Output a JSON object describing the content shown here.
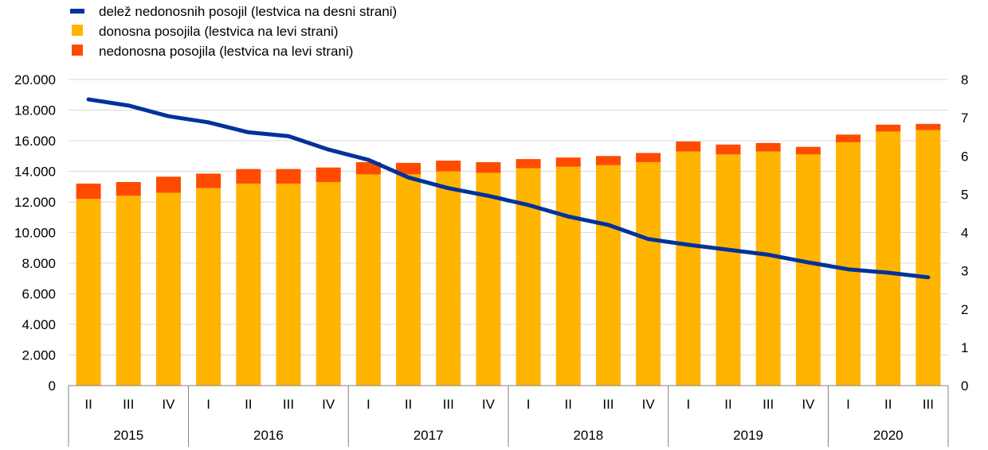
{
  "chart_data": {
    "type": "bar",
    "stacked": true,
    "colors": {
      "performing": "#FFB400",
      "nonperforming": "#FF4B00",
      "ratio": "#003299",
      "axis": "#808080"
    },
    "legend": [
      {
        "key": "ratio",
        "label": "delež nedonosnih posojil (lestvica na desni strani)",
        "marker": "line"
      },
      {
        "key": "performing",
        "label": "donosna posojila (lestvica na levi strani)",
        "marker": "square"
      },
      {
        "key": "nonperforming",
        "label": "nedonosna posojila (lestvica na levi strani)",
        "marker": "square"
      }
    ],
    "legend_position": "top-left",
    "categories": [
      "II",
      "III",
      "IV",
      "I",
      "II",
      "III",
      "IV",
      "I",
      "II",
      "III",
      "IV",
      "I",
      "II",
      "III",
      "IV",
      "I",
      "II",
      "III",
      "IV",
      "I",
      "II",
      "III"
    ],
    "years": [
      {
        "label": "2015",
        "count": 3
      },
      {
        "label": "2016",
        "count": 4
      },
      {
        "label": "2017",
        "count": 4
      },
      {
        "label": "2018",
        "count": 4
      },
      {
        "label": "2019",
        "count": 4
      },
      {
        "label": "2020",
        "count": 3
      }
    ],
    "series": [
      {
        "key": "performing",
        "name": "donosna posojila (lestvica na levi strani)",
        "axis": "left",
        "values": [
          12200,
          12400,
          12600,
          12900,
          13200,
          13200,
          13300,
          13800,
          13800,
          14000,
          13900,
          14200,
          14300,
          14400,
          14600,
          15300,
          15100,
          15300,
          15100,
          15900,
          16600,
          16700
        ]
      },
      {
        "key": "nonperforming",
        "name": "nedonosna posojila (lestvica na levi strani)",
        "axis": "left",
        "values": [
          1000,
          900,
          1050,
          950,
          950,
          950,
          950,
          800,
          750,
          700,
          700,
          600,
          600,
          600,
          600,
          650,
          650,
          550,
          500,
          500,
          450,
          400
        ]
      },
      {
        "key": "ratio",
        "name": "delež nedonosnih posojil (lestvica na desni strani)",
        "axis": "right",
        "type": "line",
        "values": [
          7.48,
          7.32,
          7.04,
          6.88,
          6.62,
          6.52,
          6.17,
          5.9,
          5.44,
          5.16,
          4.96,
          4.72,
          4.42,
          4.2,
          3.83,
          3.68,
          3.55,
          3.42,
          3.22,
          3.04,
          2.95,
          2.83
        ]
      }
    ],
    "yleft": {
      "min": 0,
      "max": 20000,
      "ticks": [
        "0",
        "2.000",
        "4.000",
        "6.000",
        "8.000",
        "10.000",
        "12.000",
        "14.000",
        "16.000",
        "18.000",
        "20.000"
      ]
    },
    "yright": {
      "min": 0,
      "max": 8,
      "ticks": [
        "0",
        "1",
        "2",
        "3",
        "4",
        "5",
        "6",
        "7",
        "8"
      ]
    },
    "grid": "horizontal"
  }
}
